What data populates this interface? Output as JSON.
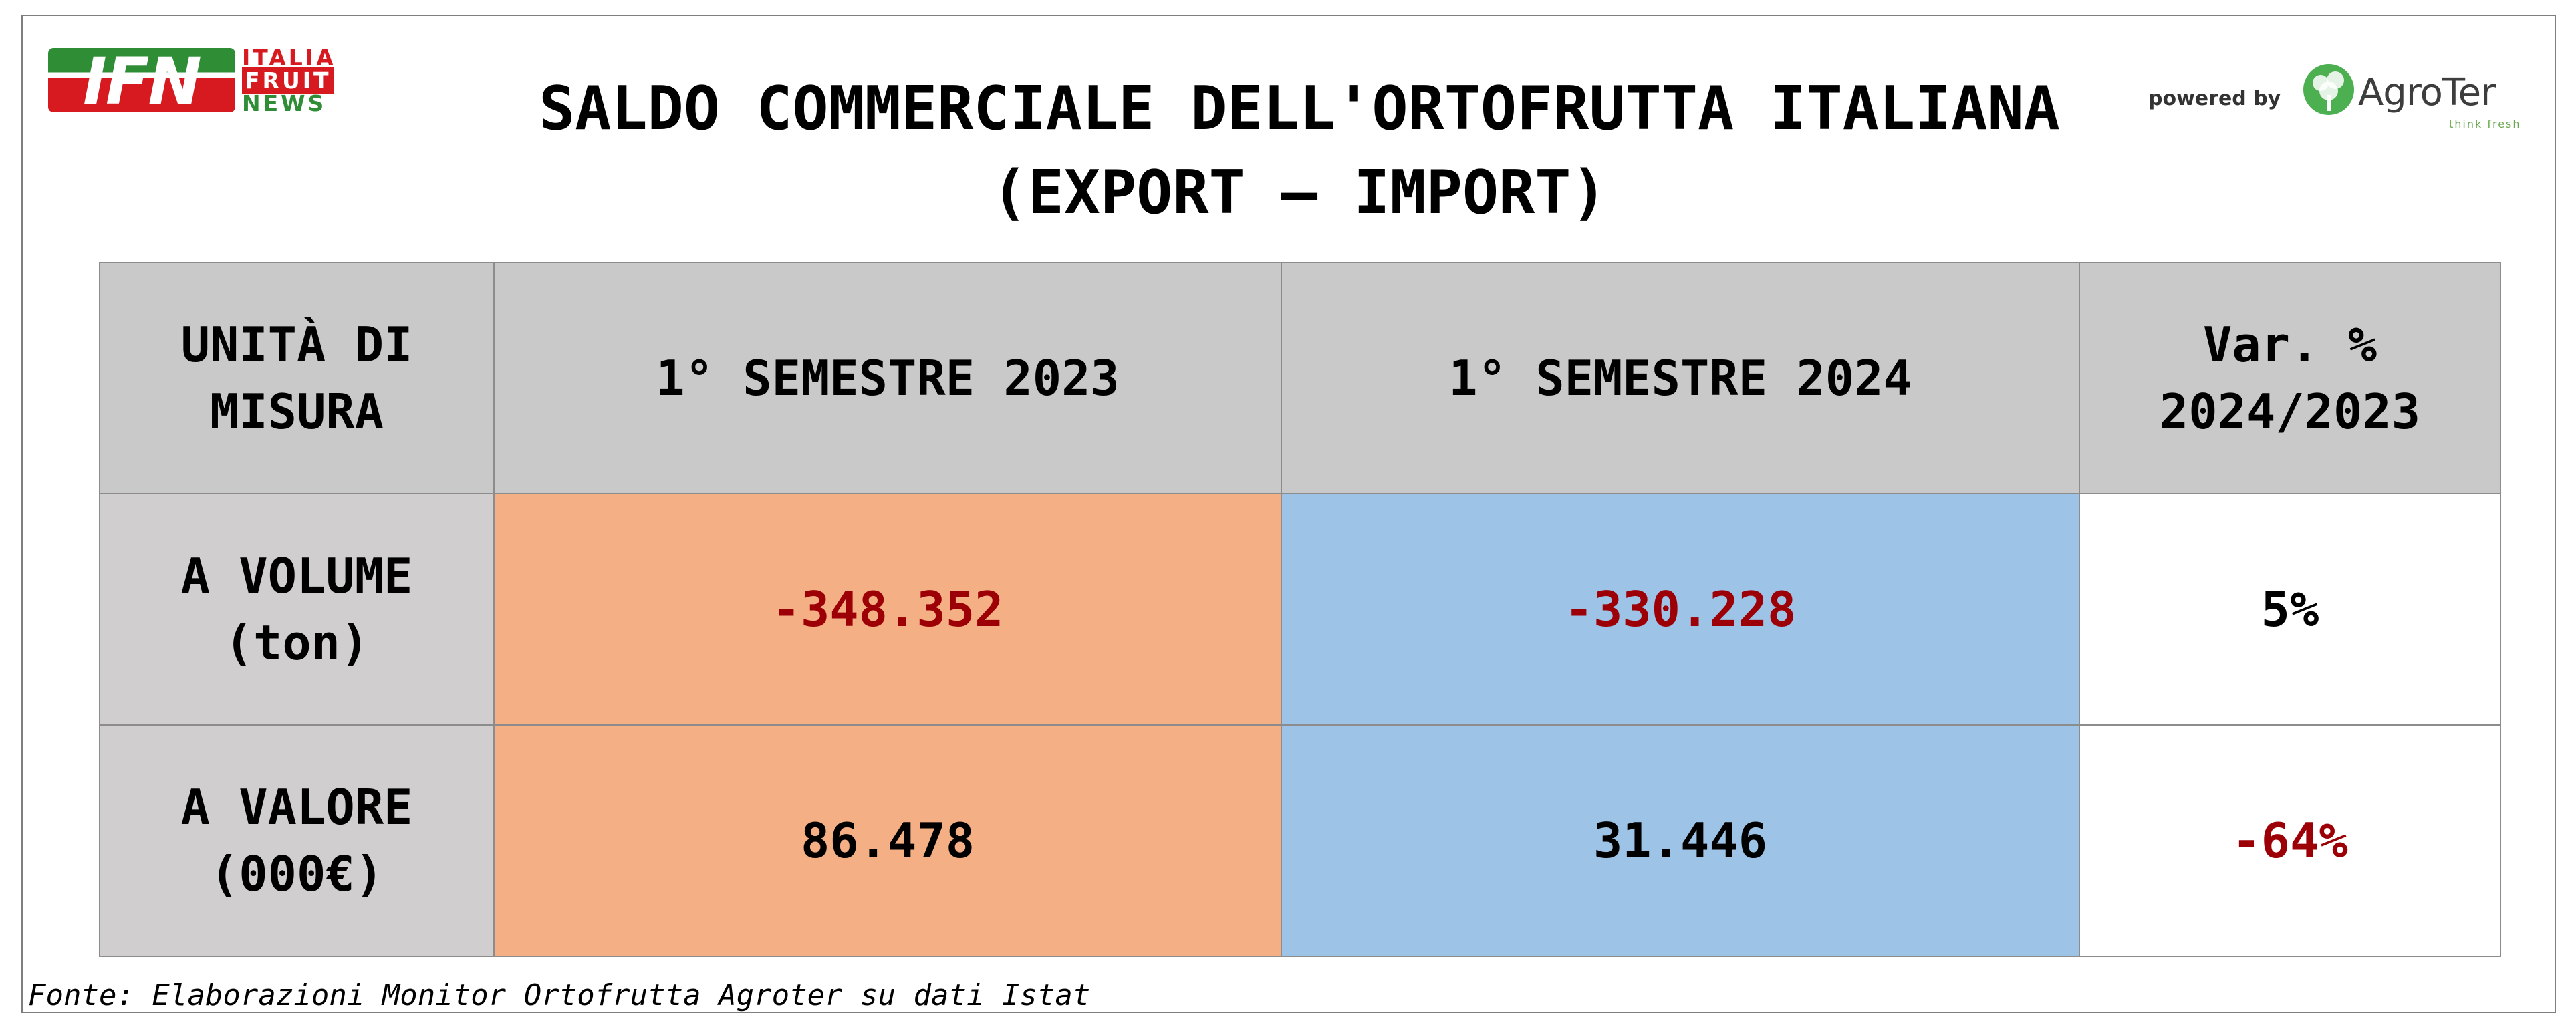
{
  "logo_left": {
    "letters": "IFN",
    "words": [
      "ITALIA",
      "FRUIT",
      "NEWS"
    ]
  },
  "title_line1": "SALDO COMMERCIALE DELL'ORTOFRUTTA ITALIANA",
  "title_line2": "(EXPORT – IMPORT)",
  "logo_right": {
    "powered": "powered by",
    "name": "AgroTer",
    "tagline": "think fresh",
    "icon": "tree-icon"
  },
  "colors": {
    "col_2023": "#f4b084",
    "col_2024": "#9dc3e6",
    "header": "#c9c9c9",
    "negative": "#9c0006"
  },
  "chart_data": {
    "type": "table",
    "columns": [
      "UNITÀ DI MISURA",
      "1° SEMESTRE 2023",
      "1° SEMESTRE 2024",
      "Var. % 2024/2023"
    ],
    "rows": [
      {
        "label": "A VOLUME (ton)",
        "values": [
          "-348.352",
          "-330.228",
          "5%"
        ]
      },
      {
        "label": "A VALORE (000€)",
        "values": [
          "86.478",
          "31.446",
          "-64%"
        ]
      }
    ]
  },
  "source": "Fonte: Elaborazioni Monitor Ortofrutta Agroter su dati Istat"
}
